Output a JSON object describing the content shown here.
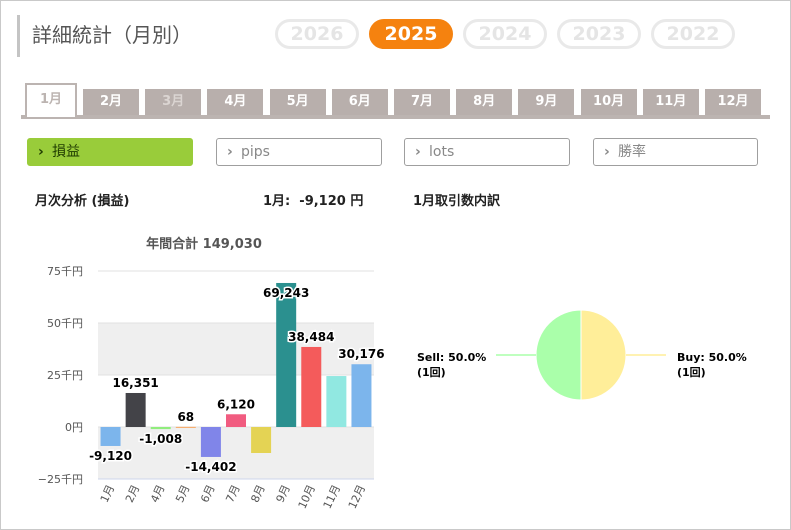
{
  "title": "詳細統計（月別）",
  "years": [
    {
      "label": "2026",
      "active": false
    },
    {
      "label": "2025",
      "active": true
    },
    {
      "label": "2024",
      "active": false
    },
    {
      "label": "2023",
      "active": false
    },
    {
      "label": "2022",
      "active": false
    }
  ],
  "months": [
    {
      "label": "1月",
      "active": true,
      "dim": false
    },
    {
      "label": "2月",
      "active": false,
      "dim": false
    },
    {
      "label": "3月",
      "active": false,
      "dim": true
    },
    {
      "label": "4月",
      "active": false,
      "dim": false
    },
    {
      "label": "5月",
      "active": false,
      "dim": false
    },
    {
      "label": "6月",
      "active": false,
      "dim": false
    },
    {
      "label": "7月",
      "active": false,
      "dim": false
    },
    {
      "label": "8月",
      "active": false,
      "dim": false
    },
    {
      "label": "9月",
      "active": false,
      "dim": false
    },
    {
      "label": "10月",
      "active": false,
      "dim": false
    },
    {
      "label": "11月",
      "active": false,
      "dim": false
    },
    {
      "label": "12月",
      "active": false,
      "dim": false
    }
  ],
  "metrics": [
    {
      "label": "損益",
      "active": true
    },
    {
      "label": "pips",
      "active": false
    },
    {
      "label": "lots",
      "active": false
    },
    {
      "label": "勝率",
      "active": false
    }
  ],
  "icons": {
    "chevron": "chevron-right-icon"
  },
  "colors": {
    "accent": "#f5820f",
    "active_metric": "#99cc3a",
    "tab": "#b8afac"
  },
  "section": {
    "monthly_title": "月次分析 (損益)",
    "month_summary": "1月:  -9,120 円",
    "breakdown_title": "1月取引数内訳"
  },
  "chart_data": [
    {
      "type": "bar",
      "title": "年間合計 149,030",
      "categories": [
        "1月",
        "2月",
        "4月",
        "5月",
        "6月",
        "7月",
        "8月",
        "9月",
        "10月",
        "11月",
        "12月"
      ],
      "values": [
        -9120,
        16351,
        -1008,
        68,
        -14402,
        6120,
        -12500,
        69243,
        38484,
        24500,
        30176
      ],
      "data_labels": [
        "-9,120",
        "16,351",
        "-1,008",
        "68",
        "-14,402",
        "6,120",
        "",
        "69,243",
        "38,484",
        "",
        "30,176"
      ],
      "colors": [
        "#7cb5ec",
        "#434348",
        "#90ed7d",
        "#f7a35c",
        "#8085e9",
        "#f15c80",
        "#e4d354",
        "#2b908f",
        "#f45b5b",
        "#91e8e1",
        "#7cb5ec"
      ],
      "yticks": [
        -25000,
        0,
        25000,
        50000,
        75000
      ],
      "ytick_labels": [
        "−25千円",
        "0円",
        "25千円",
        "50千円",
        "75千円"
      ],
      "ylim": [
        -25000,
        75000
      ],
      "grid": true
    },
    {
      "type": "pie",
      "slices": [
        {
          "name": "Sell",
          "value": 50.0,
          "label": "Sell: 50.0%",
          "count": "(1回)",
          "color": "#aaffaa"
        },
        {
          "name": "Buy",
          "value": 50.0,
          "label": "Buy: 50.0%",
          "count": "(1回)",
          "color": "#ffee99"
        }
      ]
    }
  ]
}
